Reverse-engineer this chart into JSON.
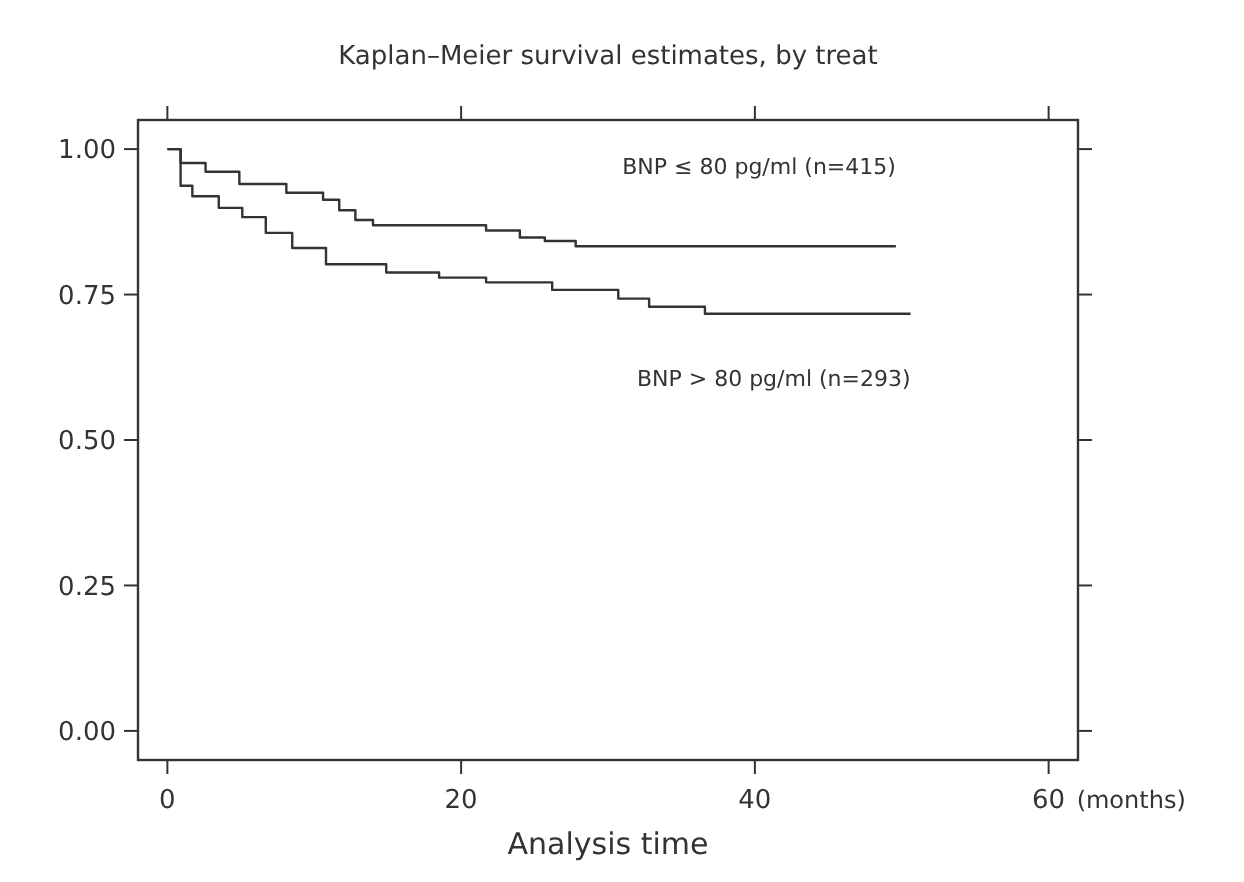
{
  "chart_data": {
    "type": "step",
    "title": "Kaplan–Meier survival estimates, by treat",
    "xlabel": "Analysis time",
    "annotations": [
      "(months)"
    ],
    "xlim": [
      -2,
      62
    ],
    "ylim": [
      -0.05,
      1.05
    ],
    "xticks": [
      0,
      20,
      40,
      60
    ],
    "yticks": [
      {
        "value": 0,
        "label": "0.00"
      },
      {
        "value": 0.25,
        "label": "0.25"
      },
      {
        "value": 0.5,
        "label": "0.50"
      },
      {
        "value": 0.75,
        "label": "0.75"
      },
      {
        "value": 1,
        "label": "1.00"
      }
    ],
    "grid": false,
    "line_style": "solid",
    "marker": "none",
    "series": [
      {
        "name": "BNP ≤ 80 pg/ml (n=415)",
        "color": "#333333",
        "x": [
          0,
          0.9,
          2.6,
          4.9,
          8.1,
          10.6,
          11.7,
          12.8,
          14.0,
          21.7,
          24.0,
          25.7,
          27.8,
          49.6
        ],
        "values": [
          1.0,
          0.976,
          0.961,
          0.94,
          0.925,
          0.913,
          0.895,
          0.878,
          0.869,
          0.86,
          0.848,
          0.842,
          0.833,
          0.833
        ]
      },
      {
        "name": "BNP > 80 pg/ml (n=293)",
        "color": "#333333",
        "x": [
          0,
          0.9,
          1.7,
          3.5,
          5.1,
          6.7,
          8.5,
          10.8,
          14.9,
          18.5,
          21.7,
          26.2,
          30.7,
          32.8,
          36.6,
          50.6
        ],
        "values": [
          1.0,
          0.937,
          0.919,
          0.899,
          0.883,
          0.856,
          0.83,
          0.802,
          0.788,
          0.779,
          0.771,
          0.758,
          0.743,
          0.729,
          0.717,
          0.717
        ]
      }
    ]
  }
}
